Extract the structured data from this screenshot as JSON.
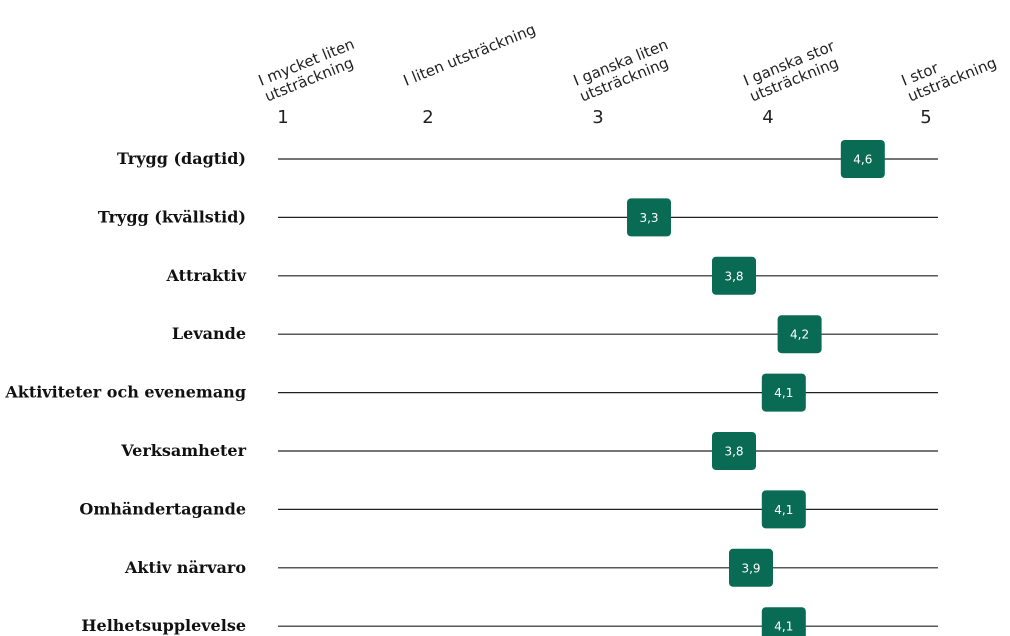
{
  "chart_data": {
    "type": "scatter",
    "orientation": "horizontal",
    "xlim": [
      1,
      5
    ],
    "ticks": [
      1,
      2,
      3,
      4,
      5
    ],
    "scale_labels": [
      [
        "I mycket liten",
        "utsträckning"
      ],
      [
        "I liten utsträckning"
      ],
      [
        "I ganska liten",
        "utsträckning"
      ],
      [
        "I ganska stor",
        "utsträckning"
      ],
      [
        "I stor",
        "utsträckning"
      ]
    ],
    "categories": [
      "Trygg (dagtid)",
      "Trygg (kvällstid)",
      "Attraktiv",
      "Levande",
      "Aktiviteter och evenemang",
      "Verksamheter",
      "Omhändertagande",
      "Aktiv närvaro",
      "Helhetsupplevelse"
    ],
    "values": [
      4.6,
      3.3,
      3.8,
      4.2,
      4.1,
      3.8,
      4.1,
      3.9,
      4.1
    ],
    "value_labels": [
      "4,6",
      "3,3",
      "3,8",
      "4,2",
      "4,1",
      "3,8",
      "4,1",
      "3,9",
      "4,1"
    ],
    "colors": {
      "marker": "#0a6b55",
      "line": "#222222",
      "marker_text": "#ffffff"
    }
  }
}
